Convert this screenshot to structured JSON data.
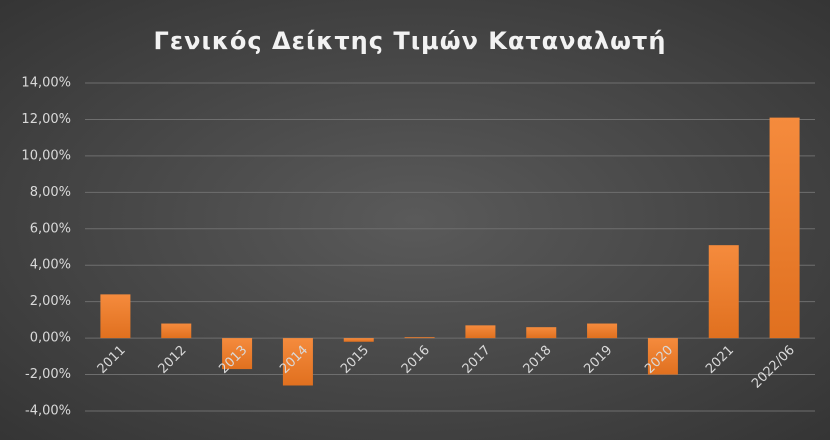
{
  "chart_data": {
    "type": "bar",
    "title": "Γενικός Δείκτης Τιμών Καταναλωτή",
    "categories": [
      "2011",
      "2012",
      "2013",
      "2014",
      "2015",
      "2016",
      "2017",
      "2018",
      "2019",
      "2020",
      "2021",
      "2022/06"
    ],
    "values": [
      2.4,
      0.8,
      -1.7,
      -2.6,
      -0.2,
      0.05,
      0.7,
      0.6,
      0.8,
      -2.0,
      5.1,
      12.1
    ],
    "color": "#f58b3d",
    "ylim": [
      -4,
      14
    ],
    "yticks": [
      {
        "value": -4,
        "label": "-4,00%"
      },
      {
        "value": -2,
        "label": "-2,00%"
      },
      {
        "value": 0,
        "label": "0,00%"
      },
      {
        "value": 2,
        "label": "2,00%"
      },
      {
        "value": 4,
        "label": "4,00%"
      },
      {
        "value": 6,
        "label": "6,00%"
      },
      {
        "value": 8,
        "label": "8,00%"
      },
      {
        "value": 10,
        "label": "10,00%"
      },
      {
        "value": 12,
        "label": "12,00%"
      },
      {
        "value": 14,
        "label": "14,00%"
      }
    ],
    "grid": true
  }
}
